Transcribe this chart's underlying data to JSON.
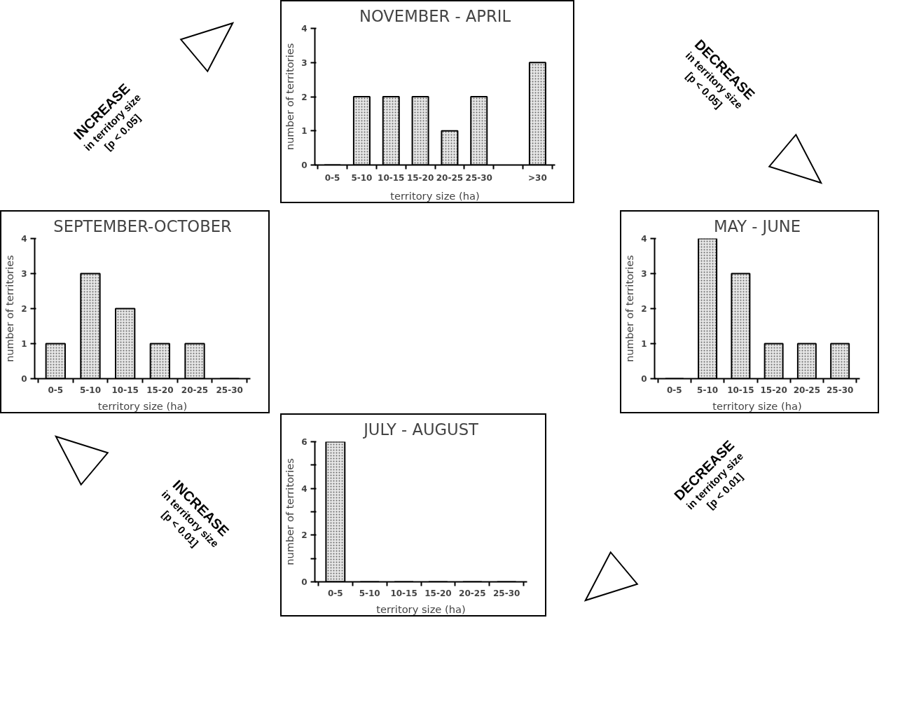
{
  "chart_data": [
    {
      "type": "bar",
      "title": "NOVEMBER - APRIL",
      "xlabel": "territory size (ha)",
      "ylabel": "number of territories",
      "categories": [
        "0-5",
        "5-10",
        "10-15",
        "15-20",
        "20-25",
        "25-30",
        null,
        ">30"
      ],
      "values": [
        0,
        2,
        2,
        2,
        1,
        2,
        null,
        3
      ],
      "color": "#e6e6e6",
      "ylim": [
        0,
        4
      ],
      "yticks": [
        0,
        1,
        2,
        3,
        4
      ]
    },
    {
      "type": "bar",
      "title": "SEPTEMBER-OCTOBER",
      "xlabel": "territory size (ha)",
      "ylabel": "number of territories",
      "categories": [
        "0-5",
        "5-10",
        "10-15",
        "15-20",
        "20-25",
        "25-30"
      ],
      "values": [
        1,
        3,
        2,
        1,
        1,
        0
      ],
      "color": "#e6e6e6",
      "ylim": [
        0,
        4
      ],
      "yticks": [
        0,
        1,
        2,
        3,
        4
      ]
    },
    {
      "type": "bar",
      "title": "MAY - JUNE",
      "xlabel": "territory size (ha)",
      "ylabel": "number of territories",
      "categories": [
        "0-5",
        "5-10",
        "10-15",
        "15-20",
        "20-25",
        "25-30"
      ],
      "values": [
        0,
        4,
        3,
        1,
        1,
        1
      ],
      "color": "#e6e6e6",
      "ylim": [
        0,
        4
      ],
      "yticks": [
        0,
        1,
        2,
        3,
        4
      ]
    },
    {
      "type": "bar",
      "title": "JULY - AUGUST",
      "xlabel": "territory size (ha)",
      "ylabel": "number of territories",
      "categories": [
        "0-5",
        "5-10",
        "10-15",
        "15-20",
        "20-25",
        "25-30"
      ],
      "values": [
        6,
        0,
        0,
        0,
        0,
        0
      ],
      "color": "#e6e6e6",
      "ylim": [
        0,
        6
      ],
      "yticks": [
        0,
        {
          "value": 1,
          "label": null
        },
        2,
        {
          "value": 3,
          "label": null
        },
        4,
        {
          "value": 5,
          "label": null
        },
        6
      ]
    },
    {
      "type": "other",
      "annotations": [
        "INCREASE\nin territory size\n[p < 0.05]",
        "DECREASE\nin territory size\n[p < 0.05]",
        "INCREASE\nin territory size\n[p < 0.01]",
        "DECREASE\nin territory size\n[p < 0.01]"
      ]
    }
  ]
}
